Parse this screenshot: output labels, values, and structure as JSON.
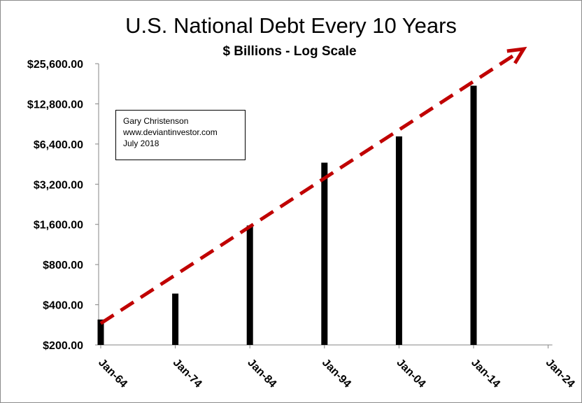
{
  "chart_data": {
    "type": "bar",
    "title": "U.S. National Debt Every 10 Years",
    "subtitle": "$ Billions - Log Scale",
    "y_scale": "log2",
    "ylim": [
      200,
      25600
    ],
    "y_ticks": [
      "$25,600.00",
      "$12,800.00",
      "$6,400.00",
      "$3,200.00",
      "$1,600.00",
      "$800.00",
      "$400.00",
      "$200.00"
    ],
    "y_tick_values": [
      25600,
      12800,
      6400,
      3200,
      1600,
      800,
      400,
      200
    ],
    "categories": [
      "Jan-64",
      "Jan-74",
      "Jan-84",
      "Jan-94",
      "Jan-04",
      "Jan-14",
      "Jan-24"
    ],
    "values": [
      310,
      485,
      1570,
      4640,
      7300,
      17500,
      null
    ],
    "bar_color": "#000000",
    "trend_line": {
      "style": "dashed-arrow",
      "color": "#c00000",
      "from": {
        "x": "Jan-64",
        "y": 290
      },
      "to": {
        "x": "Jan-24",
        "y": 33000
      }
    },
    "grid": false,
    "legend": "none"
  },
  "annotation": {
    "lines": [
      "Gary Christenson",
      "www.deviantinvestor.com",
      "July 2018"
    ]
  }
}
